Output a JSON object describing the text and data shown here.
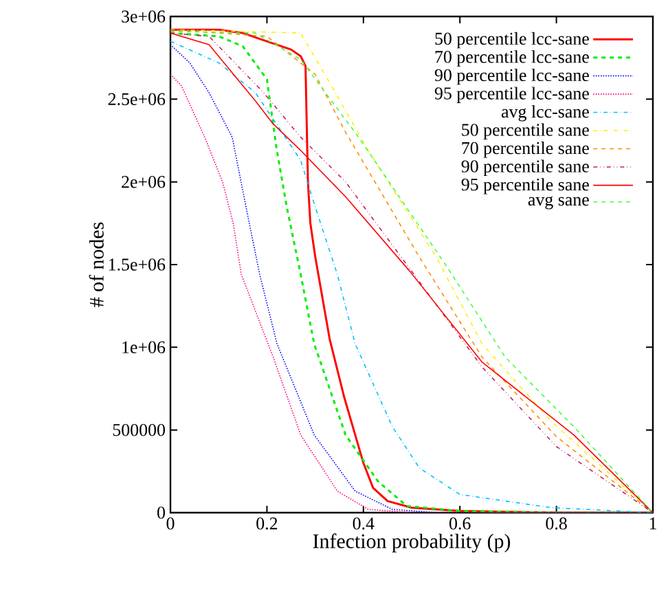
{
  "chart_data": {
    "type": "line",
    "xlabel": "Infection probability (p)",
    "ylabel": "# of nodes",
    "xlim": [
      0,
      1
    ],
    "ylim": [
      0,
      3000000
    ],
    "xticks": [
      0,
      0.2,
      0.4,
      0.6,
      0.8,
      1
    ],
    "yticks": [
      0,
      500000,
      {
        "value": 1000000,
        "label": "1e+06"
      },
      {
        "value": 1500000,
        "label": "1.5e+06"
      },
      {
        "value": 2000000,
        "label": "2e+06"
      },
      {
        "value": 2500000,
        "label": "2.5e+06"
      },
      {
        "value": 3000000,
        "label": "3e+06"
      }
    ],
    "legend": "top right",
    "grid": false,
    "marker": "none",
    "series": [
      {
        "name": "50 percentile lcc-sane",
        "color": "#ff0000",
        "line_style": "solid",
        "x": [
          0,
          0.1,
          0.15,
          0.2,
          0.25,
          0.27,
          0.28,
          0.285,
          0.29,
          0.3,
          0.33,
          0.36,
          0.4,
          0.42,
          0.45,
          0.5,
          0.6,
          0.8,
          1
        ],
        "values": [
          2920000,
          2920000,
          2900000,
          2850000,
          2800000,
          2760000,
          2700000,
          2000000,
          1750000,
          1550000,
          1050000,
          700000,
          300000,
          150000,
          70000,
          30000,
          10000,
          0,
          0
        ]
      },
      {
        "name": "70 percentile lcc-sane",
        "color": "#00ee00",
        "line_style": "dashed",
        "x": [
          0,
          0.1,
          0.15,
          0.2,
          0.22,
          0.241,
          0.27,
          0.298,
          0.363,
          0.43,
          0.49,
          0.6,
          0.8,
          1
        ],
        "values": [
          2900000,
          2880000,
          2820000,
          2620000,
          2200000,
          1850000,
          1440000,
          1020000,
          470000,
          190000,
          40000,
          10000,
          0,
          0
        ]
      },
      {
        "name": "90 percentile lcc-sane",
        "color": "#0000ff",
        "line_style": "dotted",
        "x": [
          0,
          0.04,
          0.08,
          0.128,
          0.16,
          0.185,
          0.221,
          0.298,
          0.383,
          0.46,
          0.55,
          0.8,
          1
        ],
        "values": [
          2830000,
          2720000,
          2540000,
          2270000,
          1800000,
          1440000,
          1020000,
          470000,
          130000,
          20000,
          0,
          0,
          0
        ]
      },
      {
        "name": "95 percentile lcc-sane",
        "color": "#ff0080",
        "line_style": "dotted",
        "x": [
          0,
          0.023,
          0.071,
          0.108,
          0.13,
          0.147,
          0.213,
          0.27,
          0.346,
          0.41,
          0.5,
          0.8,
          1
        ],
        "values": [
          2650000,
          2580000,
          2270000,
          2000000,
          1750000,
          1440000,
          940000,
          470000,
          130000,
          20000,
          0,
          0,
          0
        ]
      },
      {
        "name": "avg lcc-sane",
        "color": "#00bfff",
        "line_style": "dashdotted",
        "x": [
          0,
          0.1,
          0.176,
          0.27,
          0.3,
          0.346,
          0.383,
          0.46,
          0.516,
          0.6,
          0.79,
          1
        ],
        "values": [
          2850000,
          2720000,
          2540000,
          2130000,
          1850000,
          1440000,
          1020000,
          520000,
          270000,
          110000,
          30000,
          0
        ]
      },
      {
        "name": "50 percentile sane",
        "color": "#ffee00",
        "line_style": "dashdotted",
        "x": [
          0,
          0.15,
          0.27,
          0.33,
          0.41,
          0.55,
          0.646,
          0.79,
          1
        ],
        "values": [
          2920000,
          2910000,
          2900000,
          2600000,
          2190000,
          1550000,
          1020000,
          550000,
          0
        ]
      },
      {
        "name": "70 percentile sane",
        "color": "#ff8c00",
        "line_style": "dashed",
        "x": [
          0,
          0.2,
          0.3,
          0.363,
          0.515,
          0.646,
          0.8,
          1
        ],
        "values": [
          2920000,
          2880000,
          2650000,
          2300000,
          1550000,
          940000,
          460000,
          0
        ]
      },
      {
        "name": "90 percentile sane",
        "color": "#c02060",
        "line_style": "dashdotdotted",
        "x": [
          0,
          0.08,
          0.193,
          0.27,
          0.363,
          0.505,
          0.646,
          0.8,
          1
        ],
        "values": [
          2900000,
          2880000,
          2540000,
          2270000,
          2000000,
          1440000,
          880000,
          400000,
          0
        ]
      },
      {
        "name": "95 percentile sane",
        "color": "#ff0000",
        "line_style": "solid",
        "x": [
          0,
          0.08,
          0.176,
          0.213,
          0.27,
          0.363,
          0.496,
          0.646,
          0.836,
          1
        ],
        "values": [
          2900000,
          2830000,
          2490000,
          2350000,
          2190000,
          1910000,
          1460000,
          910000,
          470000,
          0
        ]
      },
      {
        "name": "avg sane",
        "color": "#40ff40",
        "line_style": "dashed",
        "x": [
          0,
          0.176,
          0.27,
          0.39,
          0.57,
          0.694,
          0.836,
          1
        ],
        "values": [
          2910000,
          2900000,
          2740000,
          2270000,
          1500000,
          940000,
          520000,
          0
        ]
      }
    ]
  }
}
